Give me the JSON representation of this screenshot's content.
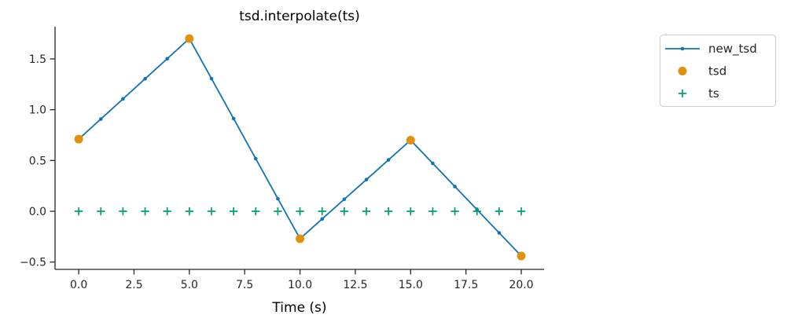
{
  "figure": {
    "background": "#ffffff"
  },
  "chart_data": {
    "type": "line",
    "title": "tsd.interpolate(ts)",
    "xlabel": "Time (s)",
    "ylabel": "",
    "grid": false,
    "axis_color": "#262626",
    "text_color": "#262626",
    "legend_border_color": "#cccccc",
    "xlim": [
      -1.07,
      21.03
    ],
    "ylim": [
      -0.572,
      1.817
    ],
    "xticks": {
      "values": [
        0,
        2.5,
        5,
        7.5,
        10,
        12.5,
        15,
        17.5,
        20
      ],
      "labels": [
        "0.0",
        "2.5",
        "5.0",
        "7.5",
        "10.0",
        "12.5",
        "15.0",
        "17.5",
        "20.0"
      ]
    },
    "yticks": {
      "values": [
        -0.5,
        0,
        0.5,
        1,
        1.5
      ],
      "labels": [
        "−0.5",
        "0.0",
        "0.5",
        "1.0",
        "1.5"
      ]
    },
    "series": [
      {
        "name": "new_tsd",
        "type": "line",
        "color": "#0f74b4",
        "marker": "dot",
        "x": [
          0,
          1,
          2,
          3,
          4,
          5,
          6,
          7,
          8,
          9,
          10,
          11,
          12,
          13,
          14,
          15,
          16,
          17,
          18,
          19,
          20
        ],
        "y": [
          0.71,
          0.908,
          1.106,
          1.304,
          1.502,
          1.7,
          1.306,
          0.912,
          0.518,
          0.124,
          -0.27,
          -0.076,
          0.118,
          0.312,
          0.506,
          0.7,
          0.472,
          0.244,
          0.016,
          -0.212,
          -0.44
        ]
      },
      {
        "name": "tsd",
        "type": "scatter",
        "color": "#e0910f",
        "marker": "circle",
        "x": [
          0,
          5,
          10,
          15,
          20
        ],
        "y": [
          0.71,
          1.7,
          -0.27,
          0.7,
          -0.44
        ]
      },
      {
        "name": "ts",
        "type": "scatter",
        "color": "#029e73",
        "marker": "plus",
        "x": [
          0,
          1,
          2,
          3,
          4,
          5,
          6,
          7,
          8,
          9,
          10,
          11,
          12,
          13,
          14,
          15,
          16,
          17,
          18,
          19,
          20
        ],
        "y": [
          0,
          0,
          0,
          0,
          0,
          0,
          0,
          0,
          0,
          0,
          0,
          0,
          0,
          0,
          0,
          0,
          0,
          0,
          0,
          0,
          0
        ]
      }
    ],
    "legend": {
      "position": "outside-right",
      "entries": [
        "new_tsd",
        "tsd",
        "ts"
      ]
    }
  }
}
